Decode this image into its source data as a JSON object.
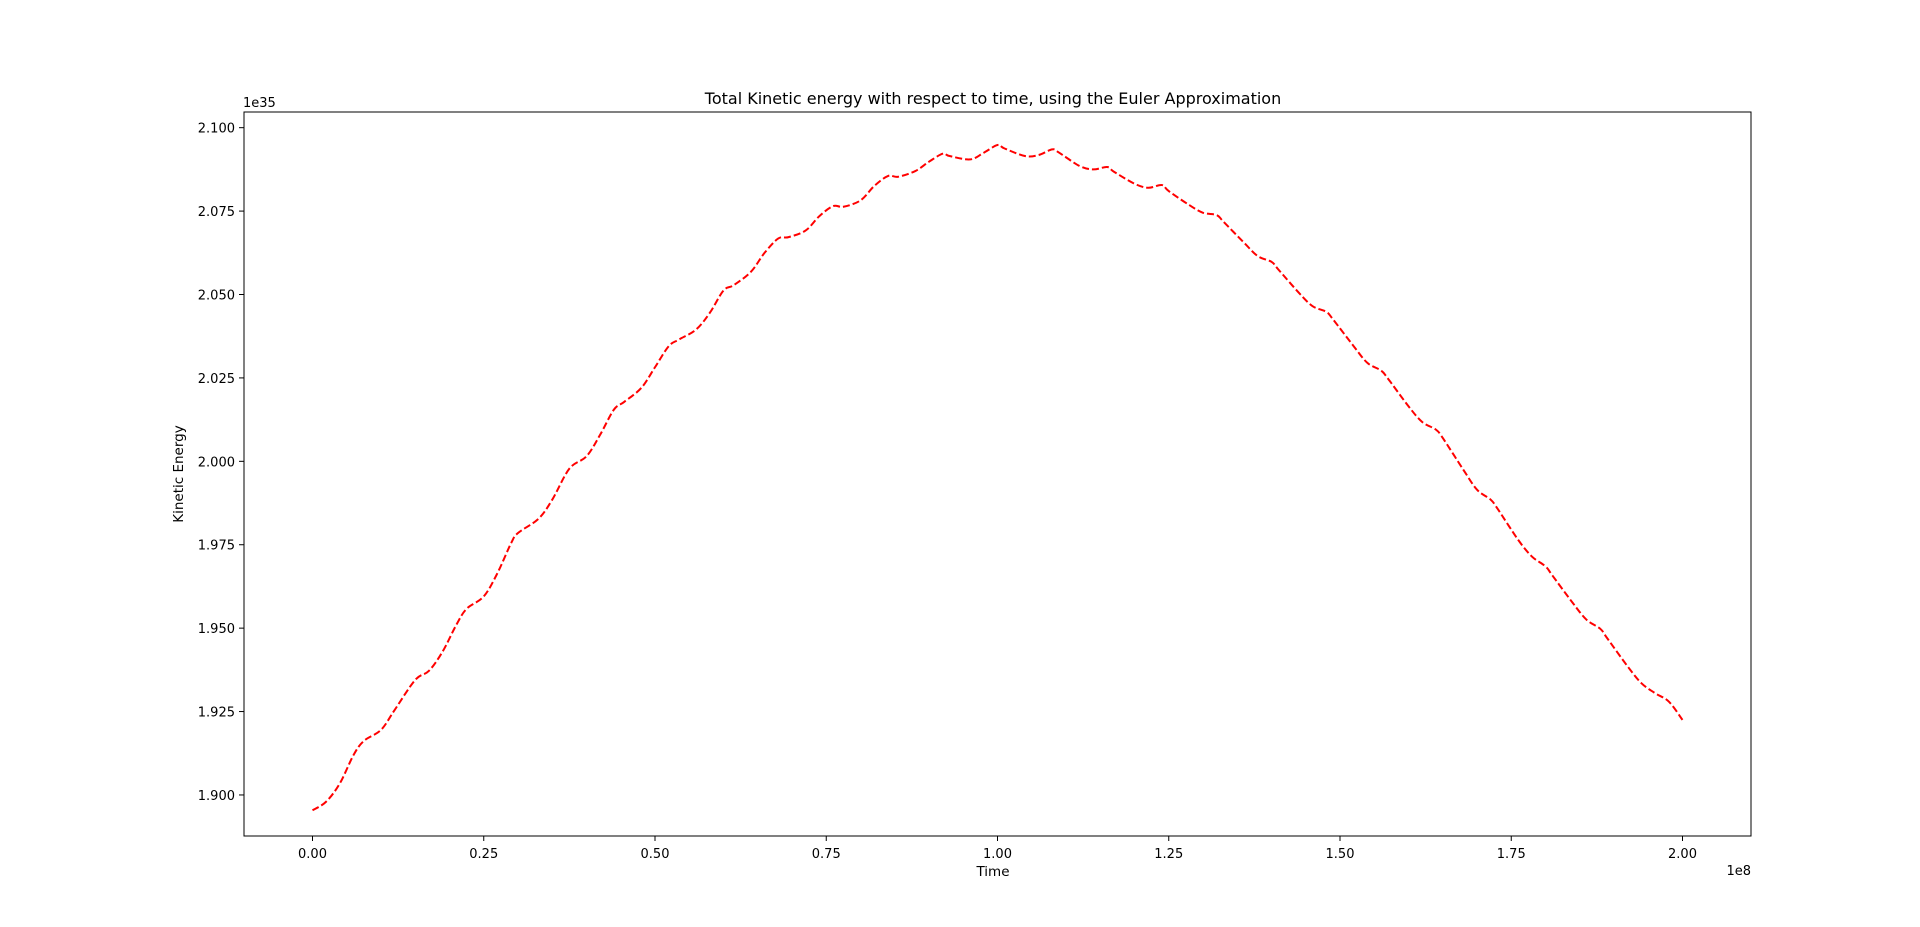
{
  "chart_data": {
    "type": "line",
    "title": "Total Kinetic energy with respect to time, using the Euler Approximation",
    "xlabel": "Time",
    "ylabel": "Kinetic Energy",
    "x_offset_label": "1e8",
    "y_offset_label": "1e35",
    "xlim": [
      -0.1,
      2.1
    ],
    "ylim": [
      1.8877,
      2.1047
    ],
    "x_ticks": [
      0.0,
      0.25,
      0.5,
      0.75,
      1.0,
      1.25,
      1.5,
      1.75,
      2.0
    ],
    "x_tick_labels": [
      "0.00",
      "0.25",
      "0.50",
      "0.75",
      "1.00",
      "1.25",
      "1.50",
      "1.75",
      "2.00"
    ],
    "y_ticks": [
      1.9,
      1.925,
      1.95,
      1.975,
      2.0,
      2.025,
      2.05,
      2.075,
      2.1
    ],
    "y_tick_labels": [
      "1.900",
      "1.925",
      "1.950",
      "1.975",
      "2.000",
      "2.025",
      "2.050",
      "2.075",
      "2.100"
    ],
    "grid": false,
    "legend": "none",
    "series": [
      {
        "color": "#ff0000",
        "line_style": "dashed",
        "x": [
          0.0,
          0.02,
          0.04,
          0.06,
          0.075,
          0.1,
          0.12,
          0.15,
          0.17,
          0.19,
          0.21,
          0.225,
          0.25,
          0.27,
          0.29,
          0.3,
          0.33,
          0.35,
          0.375,
          0.4,
          0.42,
          0.44,
          0.455,
          0.48,
          0.5,
          0.52,
          0.535,
          0.56,
          0.58,
          0.6,
          0.615,
          0.64,
          0.66,
          0.68,
          0.695,
          0.72,
          0.74,
          0.76,
          0.775,
          0.8,
          0.82,
          0.84,
          0.855,
          0.88,
          0.9,
          0.92,
          0.93,
          0.96,
          0.98,
          1.0,
          1.01,
          1.04,
          1.06,
          1.08,
          1.09,
          1.12,
          1.14,
          1.16,
          1.17,
          1.2,
          1.22,
          1.24,
          1.25,
          1.28,
          1.3,
          1.32,
          1.33,
          1.36,
          1.38,
          1.4,
          1.41,
          1.44,
          1.46,
          1.48,
          1.49,
          1.52,
          1.54,
          1.56,
          1.57,
          1.6,
          1.62,
          1.64,
          1.65,
          1.68,
          1.7,
          1.72,
          1.73,
          1.76,
          1.78,
          1.8,
          1.81,
          1.84,
          1.86,
          1.88,
          1.89,
          1.92,
          1.94,
          1.96,
          1.98,
          2.0
        ],
        "values": [
          1.8954,
          1.898,
          1.9035,
          1.912,
          1.9162,
          1.9195,
          1.9255,
          1.9345,
          1.9372,
          1.943,
          1.951,
          1.9558,
          1.9595,
          1.9665,
          1.9755,
          1.9785,
          1.9828,
          1.9885,
          1.9978,
          2.0015,
          2.008,
          2.0155,
          2.0178,
          2.022,
          2.0282,
          2.0345,
          2.0365,
          2.0395,
          2.0445,
          2.0512,
          2.0528,
          2.0568,
          2.0625,
          2.0668,
          2.0672,
          2.0692,
          2.0735,
          2.0765,
          2.0763,
          2.0782,
          2.0825,
          2.0855,
          2.0853,
          2.087,
          2.0898,
          2.0922,
          2.0915,
          2.0905,
          2.0925,
          2.0948,
          2.0938,
          2.0915,
          2.0918,
          2.0935,
          2.0925,
          2.0885,
          2.0875,
          2.0882,
          2.0868,
          2.0832,
          2.082,
          2.0828,
          2.081,
          2.0768,
          2.0745,
          2.0738,
          2.0718,
          2.0655,
          2.0615,
          2.0598,
          2.0575,
          2.0505,
          2.0465,
          2.0448,
          2.0425,
          2.0345,
          2.0295,
          2.0272,
          2.0248,
          2.0165,
          2.0118,
          2.0095,
          2.007,
          1.9975,
          1.9915,
          1.9885,
          1.9858,
          1.9765,
          1.9715,
          1.9685,
          1.9658,
          1.9575,
          1.9525,
          1.9498,
          1.947,
          1.9385,
          1.9335,
          1.9305,
          1.928,
          1.9225
        ]
      }
    ]
  }
}
